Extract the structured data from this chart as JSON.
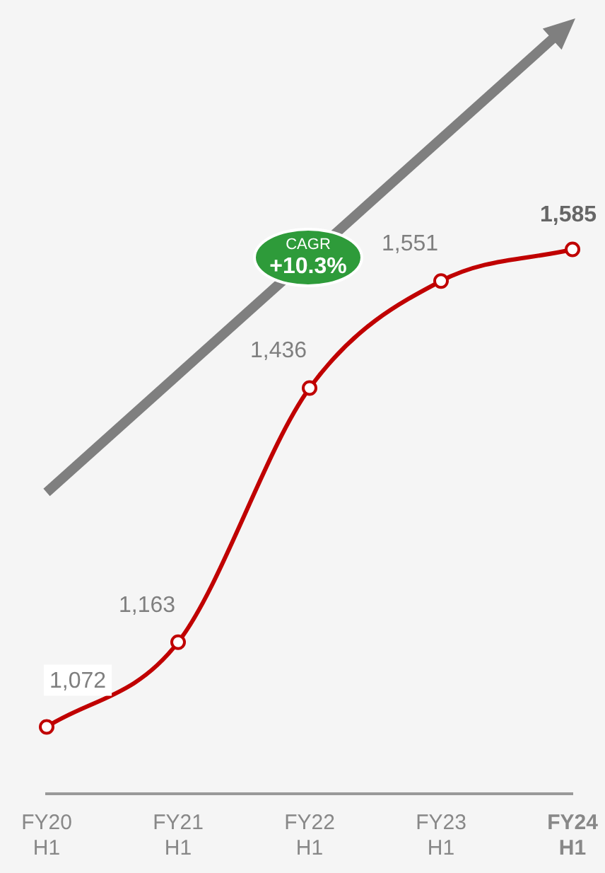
{
  "chart_data": {
    "type": "line",
    "categories": [
      "FY20 H1",
      "FY21 H1",
      "FY22 H1",
      "FY23 H1",
      "FY24 H1"
    ],
    "series": [
      {
        "color": "#c00000",
        "values": [
          1072,
          1163,
          1436,
          1551,
          1585
        ],
        "value_labels": [
          "1,072",
          "1,163",
          "1,436",
          "1,551",
          "1,585"
        ]
      }
    ],
    "tick_labels": "x",
    "grid": false,
    "legend": false,
    "marker": "circle",
    "line_style": "solid",
    "annotations": [
      "CAGR",
      "+10.3%"
    ]
  }
}
